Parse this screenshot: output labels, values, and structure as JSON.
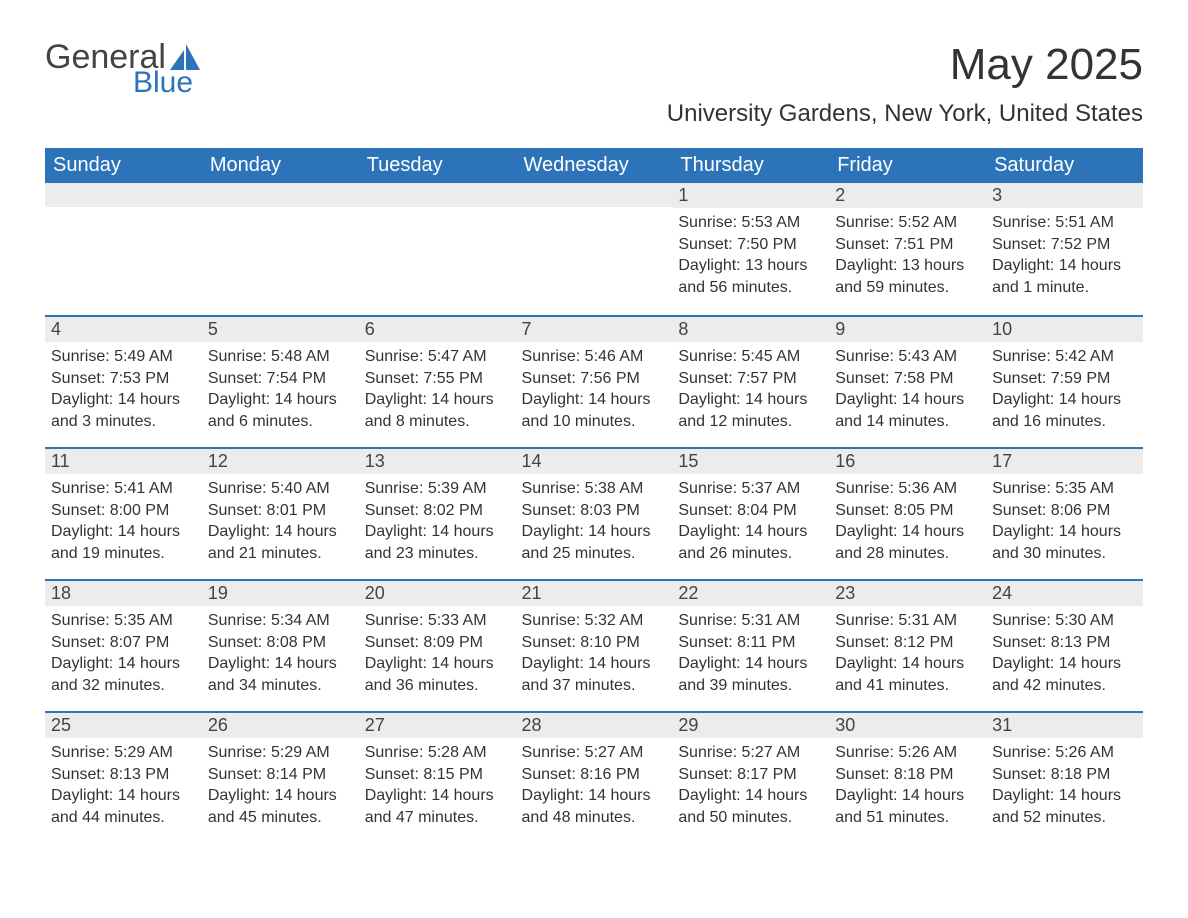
{
  "logo": {
    "general": "General",
    "blue": "Blue"
  },
  "title": "May 2025",
  "location": "University Gardens, New York, United States",
  "colors": {
    "header_bg": "#2d73b9",
    "header_text": "#ffffff",
    "daynum_bg": "#ececec",
    "row_divider": "#2d73b9",
    "body_text": "#333333",
    "logo_gray": "#444444",
    "logo_blue": "#2d73b9",
    "page_bg": "#ffffff"
  },
  "weekdays": [
    "Sunday",
    "Monday",
    "Tuesday",
    "Wednesday",
    "Thursday",
    "Friday",
    "Saturday"
  ],
  "weeks": [
    [
      null,
      null,
      null,
      null,
      {
        "n": "1",
        "sr": "5:53 AM",
        "ss": "7:50 PM",
        "dl": "13 hours and 56 minutes."
      },
      {
        "n": "2",
        "sr": "5:52 AM",
        "ss": "7:51 PM",
        "dl": "13 hours and 59 minutes."
      },
      {
        "n": "3",
        "sr": "5:51 AM",
        "ss": "7:52 PM",
        "dl": "14 hours and 1 minute."
      }
    ],
    [
      {
        "n": "4",
        "sr": "5:49 AM",
        "ss": "7:53 PM",
        "dl": "14 hours and 3 minutes."
      },
      {
        "n": "5",
        "sr": "5:48 AM",
        "ss": "7:54 PM",
        "dl": "14 hours and 6 minutes."
      },
      {
        "n": "6",
        "sr": "5:47 AM",
        "ss": "7:55 PM",
        "dl": "14 hours and 8 minutes."
      },
      {
        "n": "7",
        "sr": "5:46 AM",
        "ss": "7:56 PM",
        "dl": "14 hours and 10 minutes."
      },
      {
        "n": "8",
        "sr": "5:45 AM",
        "ss": "7:57 PM",
        "dl": "14 hours and 12 minutes."
      },
      {
        "n": "9",
        "sr": "5:43 AM",
        "ss": "7:58 PM",
        "dl": "14 hours and 14 minutes."
      },
      {
        "n": "10",
        "sr": "5:42 AM",
        "ss": "7:59 PM",
        "dl": "14 hours and 16 minutes."
      }
    ],
    [
      {
        "n": "11",
        "sr": "5:41 AM",
        "ss": "8:00 PM",
        "dl": "14 hours and 19 minutes."
      },
      {
        "n": "12",
        "sr": "5:40 AM",
        "ss": "8:01 PM",
        "dl": "14 hours and 21 minutes."
      },
      {
        "n": "13",
        "sr": "5:39 AM",
        "ss": "8:02 PM",
        "dl": "14 hours and 23 minutes."
      },
      {
        "n": "14",
        "sr": "5:38 AM",
        "ss": "8:03 PM",
        "dl": "14 hours and 25 minutes."
      },
      {
        "n": "15",
        "sr": "5:37 AM",
        "ss": "8:04 PM",
        "dl": "14 hours and 26 minutes."
      },
      {
        "n": "16",
        "sr": "5:36 AM",
        "ss": "8:05 PM",
        "dl": "14 hours and 28 minutes."
      },
      {
        "n": "17",
        "sr": "5:35 AM",
        "ss": "8:06 PM",
        "dl": "14 hours and 30 minutes."
      }
    ],
    [
      {
        "n": "18",
        "sr": "5:35 AM",
        "ss": "8:07 PM",
        "dl": "14 hours and 32 minutes."
      },
      {
        "n": "19",
        "sr": "5:34 AM",
        "ss": "8:08 PM",
        "dl": "14 hours and 34 minutes."
      },
      {
        "n": "20",
        "sr": "5:33 AM",
        "ss": "8:09 PM",
        "dl": "14 hours and 36 minutes."
      },
      {
        "n": "21",
        "sr": "5:32 AM",
        "ss": "8:10 PM",
        "dl": "14 hours and 37 minutes."
      },
      {
        "n": "22",
        "sr": "5:31 AM",
        "ss": "8:11 PM",
        "dl": "14 hours and 39 minutes."
      },
      {
        "n": "23",
        "sr": "5:31 AM",
        "ss": "8:12 PM",
        "dl": "14 hours and 41 minutes."
      },
      {
        "n": "24",
        "sr": "5:30 AM",
        "ss": "8:13 PM",
        "dl": "14 hours and 42 minutes."
      }
    ],
    [
      {
        "n": "25",
        "sr": "5:29 AM",
        "ss": "8:13 PM",
        "dl": "14 hours and 44 minutes."
      },
      {
        "n": "26",
        "sr": "5:29 AM",
        "ss": "8:14 PM",
        "dl": "14 hours and 45 minutes."
      },
      {
        "n": "27",
        "sr": "5:28 AM",
        "ss": "8:15 PM",
        "dl": "14 hours and 47 minutes."
      },
      {
        "n": "28",
        "sr": "5:27 AM",
        "ss": "8:16 PM",
        "dl": "14 hours and 48 minutes."
      },
      {
        "n": "29",
        "sr": "5:27 AM",
        "ss": "8:17 PM",
        "dl": "14 hours and 50 minutes."
      },
      {
        "n": "30",
        "sr": "5:26 AM",
        "ss": "8:18 PM",
        "dl": "14 hours and 51 minutes."
      },
      {
        "n": "31",
        "sr": "5:26 AM",
        "ss": "8:18 PM",
        "dl": "14 hours and 52 minutes."
      }
    ]
  ],
  "labels": {
    "sunrise": "Sunrise:",
    "sunset": "Sunset:",
    "daylight": "Daylight:"
  }
}
